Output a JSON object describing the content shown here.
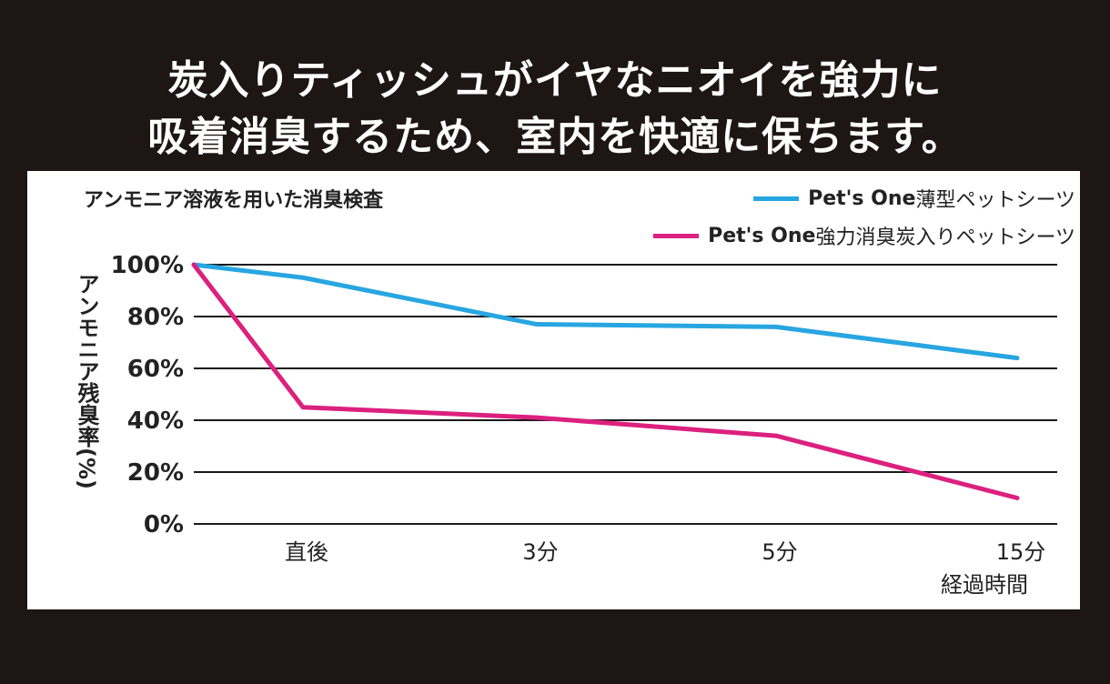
{
  "headline": {
    "line1": "炭入りティッシュがイヤなニオイを強力に",
    "line2": "吸着消臭するため、室内を快適に保ちます。"
  },
  "chart_data": {
    "type": "line",
    "title": "アンモニア溶液を用いた消臭検査",
    "categories": [
      "直後",
      "3分",
      "5分",
      "15分"
    ],
    "x_start_value": 100,
    "ytick_labels": [
      "100%",
      "80%",
      "60%",
      "40%",
      "20%",
      "0%"
    ],
    "ylim": [
      0,
      100
    ],
    "ylabel": "アンモニア残臭率(%)",
    "xlabel": "経過時間",
    "grid": true,
    "legend_position": "top-right",
    "series": [
      {
        "name_brand": "Pet's One",
        "name_rest": " 薄型ペットシーツ",
        "color": "#27a6e1",
        "values": [
          95,
          77,
          76,
          64
        ]
      },
      {
        "name_brand": "Pet's One",
        "name_rest": "強力消臭炭入りペットシーツ",
        "color": "#dc207e",
        "values": [
          45,
          41,
          34,
          10
        ]
      }
    ]
  }
}
